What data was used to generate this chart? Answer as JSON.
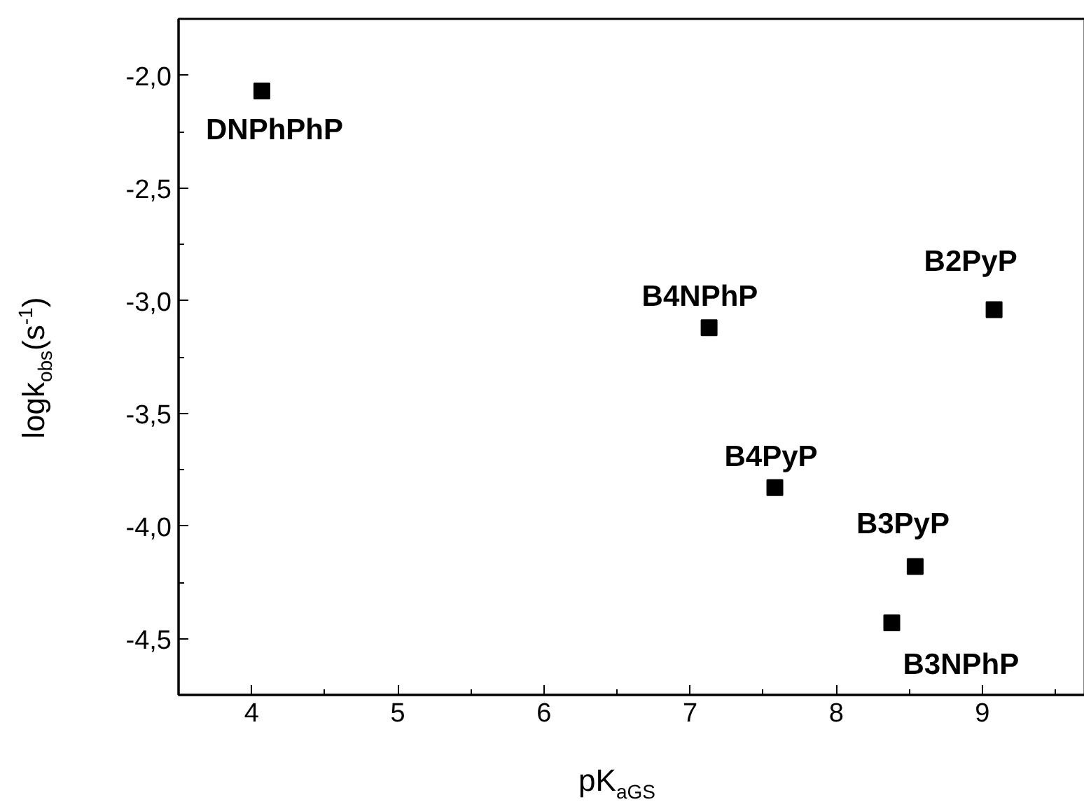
{
  "chart_data": {
    "type": "scatter",
    "xlabel": "pK$_{aGS}$",
    "ylabel": "logk$_{obs}$(s$^{-1}$)",
    "xlim": [
      3.5,
      9.7
    ],
    "ylim": [
      -4.75,
      -1.75
    ],
    "xticks": [
      4,
      5,
      6,
      7,
      8,
      9
    ],
    "yticks": [
      {
        "value": -2.0,
        "label": "-2,0"
      },
      {
        "value": -2.5,
        "label": "-2,5"
      },
      {
        "value": -3.0,
        "label": "-3,0"
      },
      {
        "value": -3.5,
        "label": "-3,5"
      },
      {
        "value": -4.0,
        "label": "-4,0"
      },
      {
        "value": -4.5,
        "label": "-4,5"
      }
    ],
    "marker": "square",
    "grid": false,
    "series": [
      {
        "name": "DNPhPhP",
        "color": "#000000",
        "x": [
          4.07
        ],
        "values": [
          -2.07
        ]
      },
      {
        "name": "B4NPhP",
        "color": "#000000",
        "x": [
          7.13
        ],
        "values": [
          -3.12
        ]
      },
      {
        "name": "B2PyP",
        "color": "#000000",
        "x": [
          9.08
        ],
        "values": [
          -3.04
        ]
      },
      {
        "name": "B4PyP",
        "color": "#000000",
        "x": [
          7.58
        ],
        "values": [
          -3.83
        ]
      },
      {
        "name": "B3PyP",
        "color": "#000000",
        "x": [
          8.54
        ],
        "values": [
          -4.18
        ]
      },
      {
        "name": "B3NPhP",
        "color": "#000000",
        "x": [
          8.38
        ],
        "values": [
          -4.43
        ]
      }
    ]
  }
}
